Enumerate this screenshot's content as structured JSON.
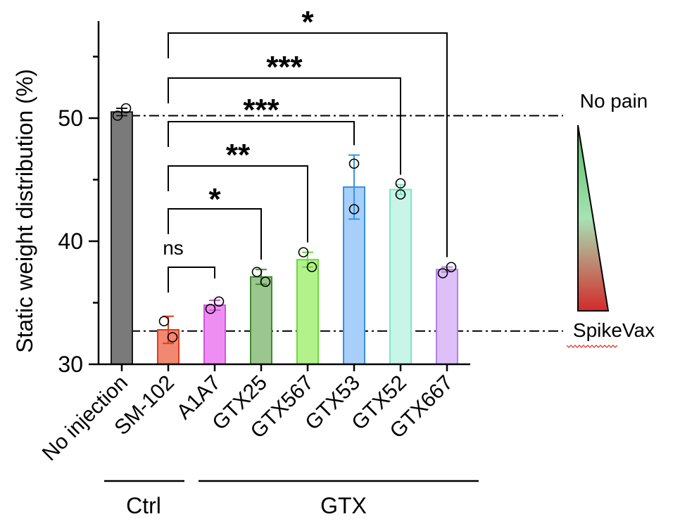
{
  "chart_data": {
    "type": "bar",
    "title": "",
    "ylabel": "Static weight distribution (%)",
    "xlabel": "",
    "ylim": [
      30,
      58
    ],
    "yticks": [
      30,
      40,
      50
    ],
    "grid": false,
    "categories": [
      "No injection",
      "SM-102",
      "A1A7",
      "GTX25",
      "GTX567",
      "GTX53",
      "GTX52",
      "GTX667"
    ],
    "values": [
      50.5,
      32.8,
      34.8,
      37.1,
      38.5,
      44.4,
      44.2,
      37.7
    ],
    "errors": [
      0.3,
      1.1,
      0.4,
      0.6,
      0.6,
      2.6,
      0.4,
      0.2
    ],
    "points": [
      [
        50.2,
        50.8
      ],
      [
        33.5,
        32.2
      ],
      [
        34.5,
        35.1
      ],
      [
        37.5,
        36.7
      ],
      [
        39.1,
        37.9
      ],
      [
        46.3,
        42.6
      ],
      [
        44.7,
        43.8
      ],
      [
        37.4,
        37.9
      ]
    ],
    "bar_colors": [
      "#7a7a7a",
      "#f08872",
      "#ef8ef2",
      "#9cc68f",
      "#b3f28a",
      "#a7cff9",
      "#c9f5e8",
      "#dcc0f7"
    ],
    "edge_colors": [
      "#1a1a1a",
      "#e03a1e",
      "#d255df",
      "#3e8a2c",
      "#68db3d",
      "#3b91e0",
      "#7ee6c4",
      "#b27fe8"
    ],
    "reference_lines": [
      {
        "value": 50.2,
        "label": "No pain"
      },
      {
        "value": 32.7,
        "label": "SpikeVax"
      }
    ],
    "groups": [
      {
        "label": "Ctrl",
        "from": 0,
        "to": 1
      },
      {
        "label": "GTX",
        "from": 2,
        "to": 7
      }
    ],
    "comparisons": [
      {
        "from": 1,
        "to": 2,
        "label": "ns",
        "level": 0
      },
      {
        "from": 1,
        "to": 3,
        "label": "*",
        "level": 1
      },
      {
        "from": 1,
        "to": 4,
        "label": "**",
        "level": 2
      },
      {
        "from": 1,
        "to": 5,
        "label": "***",
        "level": 3
      },
      {
        "from": 1,
        "to": 6,
        "label": "***",
        "level": 4
      },
      {
        "from": 1,
        "to": 7,
        "label": "*",
        "level": 5
      }
    ],
    "gradient_colors": [
      "#4fbf5f",
      "#a6e3b4",
      "#d42a2a"
    ]
  }
}
